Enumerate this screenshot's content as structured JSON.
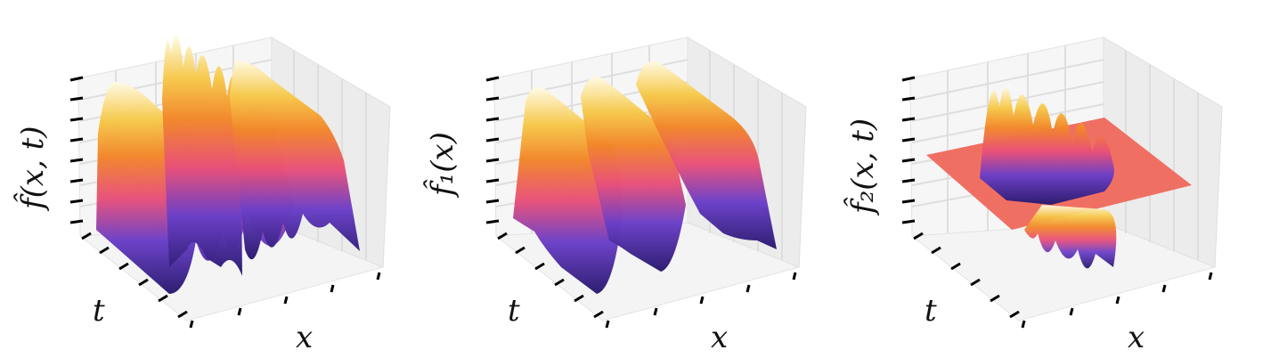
{
  "chart_data": [
    {
      "type": "surface",
      "zlabel": "f̂(x, t)",
      "xlabel": "x",
      "ylabel": "t",
      "tick_labels": "none",
      "grid": true,
      "colormap": "CMRmap-like (indigo → red → orange → yellow → white)"
    },
    {
      "type": "surface",
      "zlabel": "f̂₁(x)",
      "xlabel": "x",
      "ylabel": "t",
      "tick_labels": "none",
      "grid": true,
      "colormap": "CMRmap-like (indigo → red → orange → yellow → white)"
    },
    {
      "type": "surface",
      "zlabel": "f̂₂(x, t)",
      "xlabel": "x",
      "ylabel": "t",
      "tick_labels": "none",
      "grid": true,
      "colormap": "CMRmap-like (indigo → red → orange → yellow → white)"
    }
  ],
  "colors": {
    "pane": "#f2f2f2",
    "pane_dark": "#e8e8e8",
    "grid": "#dcdcdc",
    "tick": "#000000"
  }
}
